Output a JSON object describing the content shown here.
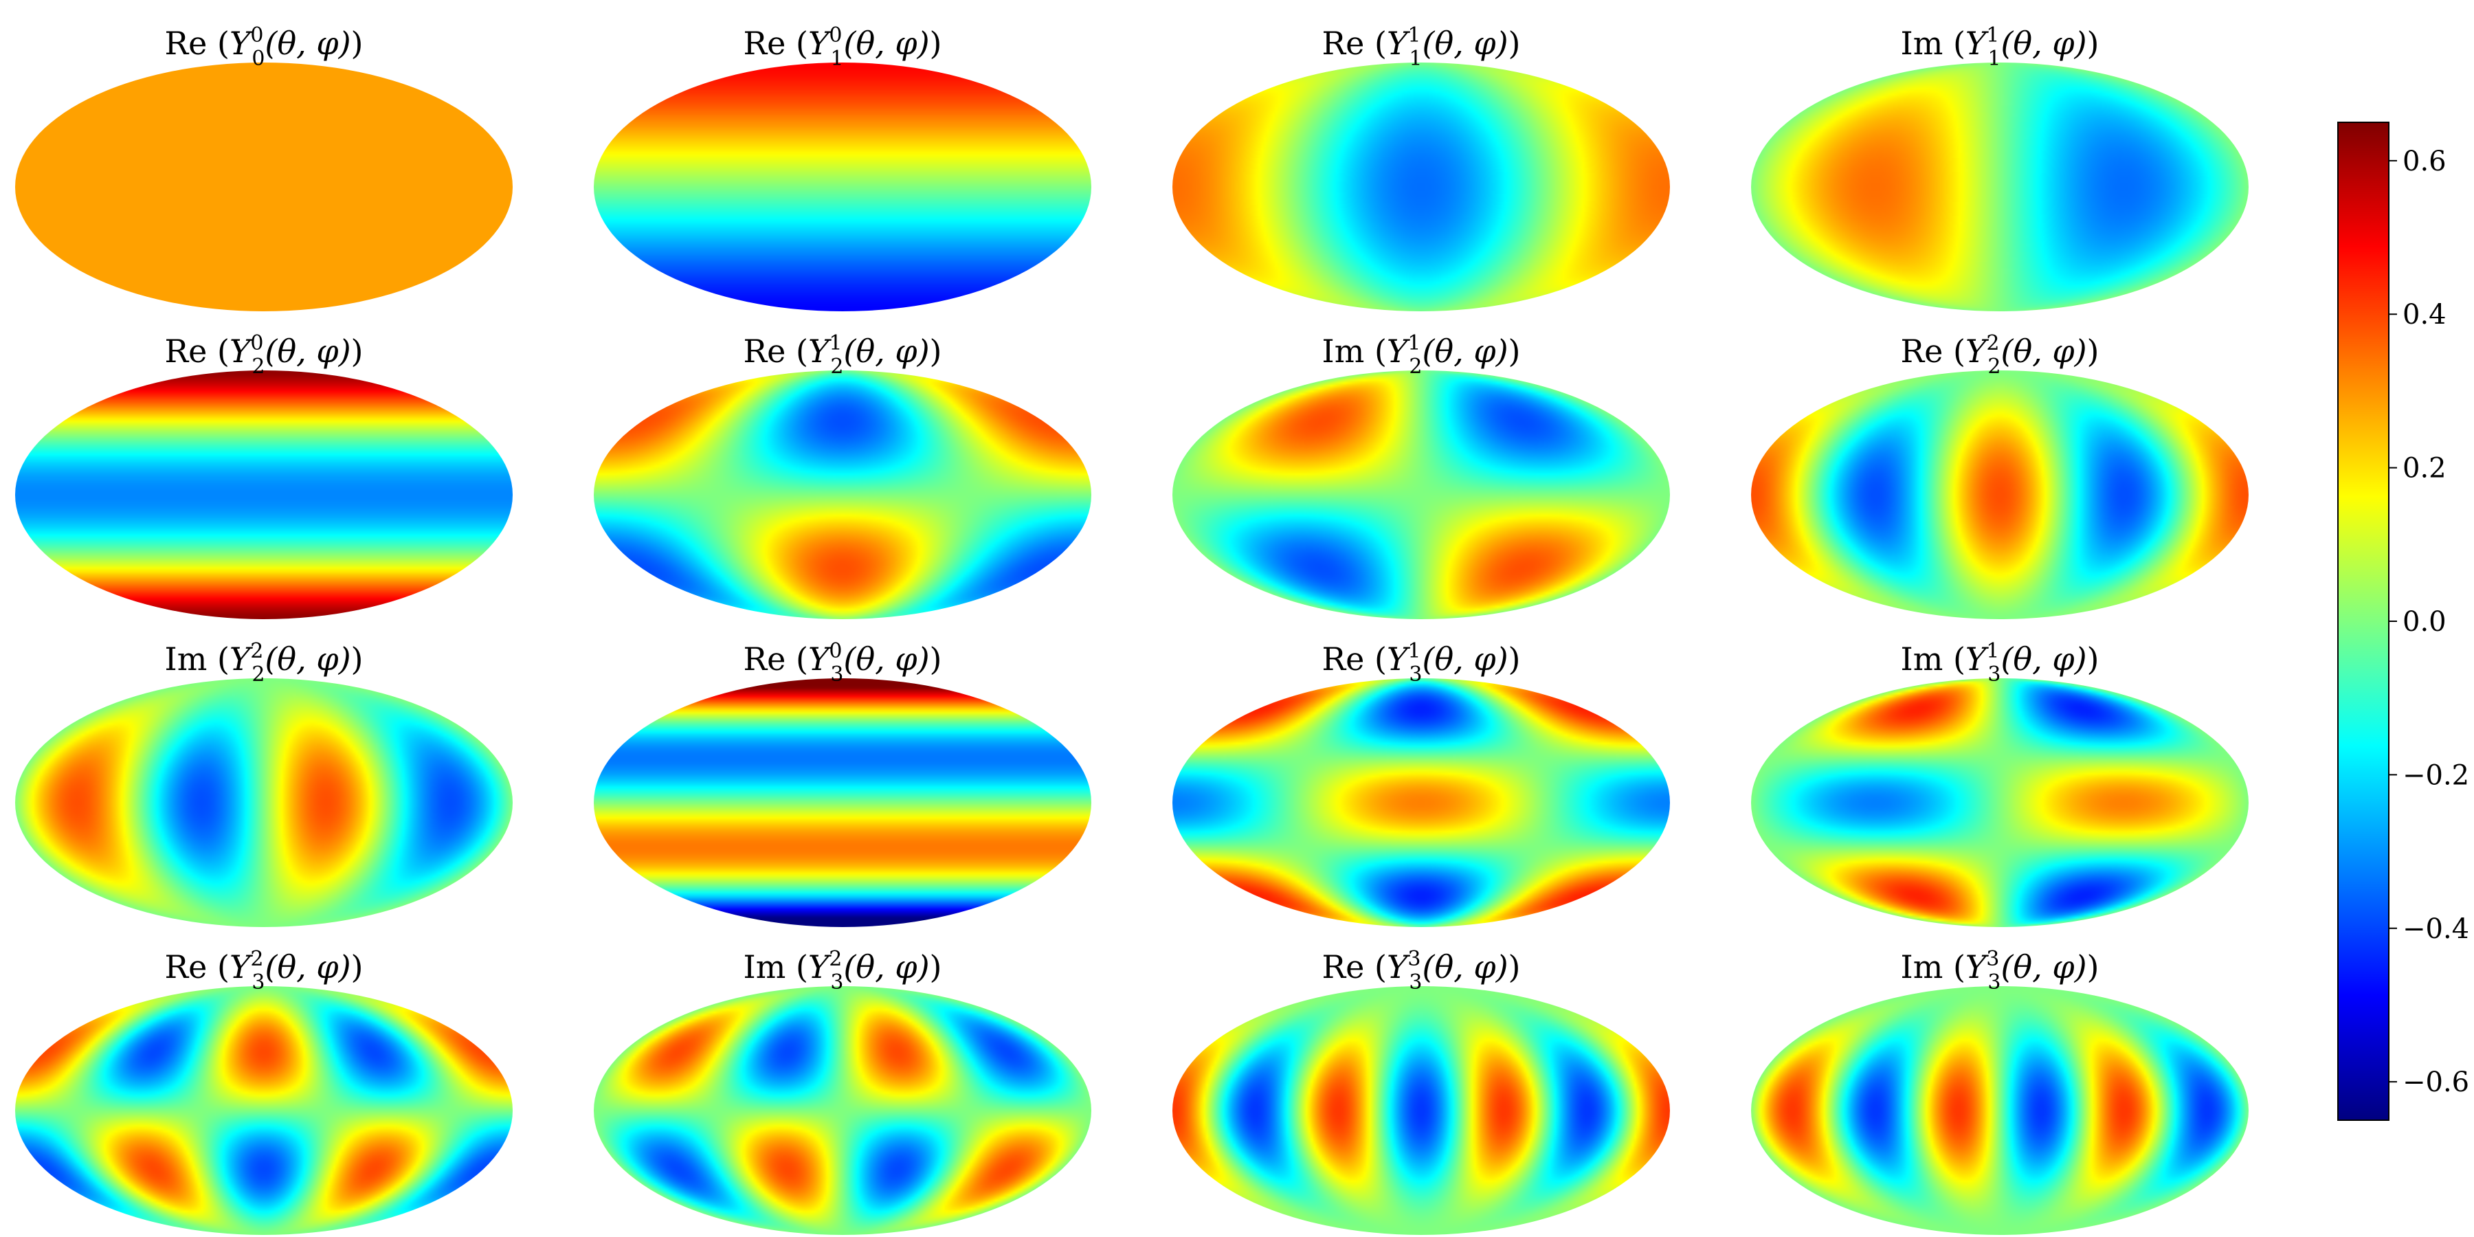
{
  "chart_data": {
    "type": "heatmap",
    "title": "",
    "projection": "mollweide",
    "colormap": "jet",
    "grid": false,
    "legend": "colorbar-right",
    "value_range": [
      -0.65,
      0.65
    ],
    "colorbar": {
      "ticks": [
        0.6,
        0.4,
        0.2,
        0.0,
        -0.2,
        -0.4,
        -0.6
      ],
      "tick_labels": [
        "0.6",
        "0.4",
        "0.2",
        "0.0",
        "−0.2",
        "−0.4",
        "−0.6"
      ]
    },
    "panels": [
      {
        "part": "Re",
        "l": 0,
        "m": 0,
        "fn": "Y",
        "sub": "0",
        "sup": "0",
        "args": "(θ, φ)"
      },
      {
        "part": "Re",
        "l": 1,
        "m": 0,
        "fn": "Y",
        "sub": "1",
        "sup": "0",
        "args": "(θ, φ)"
      },
      {
        "part": "Re",
        "l": 1,
        "m": 1,
        "fn": "Y",
        "sub": "1",
        "sup": "1",
        "args": "(θ, φ)"
      },
      {
        "part": "Im",
        "l": 1,
        "m": 1,
        "fn": "Y",
        "sub": "1",
        "sup": "1",
        "args": "(θ, φ)"
      },
      {
        "part": "Re",
        "l": 2,
        "m": 0,
        "fn": "Y",
        "sub": "2",
        "sup": "0",
        "args": "(θ, φ)"
      },
      {
        "part": "Re",
        "l": 2,
        "m": 1,
        "fn": "Y",
        "sub": "2",
        "sup": "1",
        "args": "(θ, φ)"
      },
      {
        "part": "Im",
        "l": 2,
        "m": 1,
        "fn": "Y",
        "sub": "2",
        "sup": "1",
        "args": "(θ, φ)"
      },
      {
        "part": "Re",
        "l": 2,
        "m": 2,
        "fn": "Y",
        "sub": "2",
        "sup": "2",
        "args": "(θ, φ)"
      },
      {
        "part": "Im",
        "l": 2,
        "m": 2,
        "fn": "Y",
        "sub": "2",
        "sup": "2",
        "args": "(θ, φ)"
      },
      {
        "part": "Re",
        "l": 3,
        "m": 0,
        "fn": "Y",
        "sub": "3",
        "sup": "0",
        "args": "(θ, φ)"
      },
      {
        "part": "Re",
        "l": 3,
        "m": 1,
        "fn": "Y",
        "sub": "3",
        "sup": "1",
        "args": "(θ, φ)"
      },
      {
        "part": "Im",
        "l": 3,
        "m": 1,
        "fn": "Y",
        "sub": "3",
        "sup": "1",
        "args": "(θ, φ)"
      },
      {
        "part": "Re",
        "l": 3,
        "m": 2,
        "fn": "Y",
        "sub": "3",
        "sup": "2",
        "args": "(θ, φ)"
      },
      {
        "part": "Im",
        "l": 3,
        "m": 2,
        "fn": "Y",
        "sub": "3",
        "sup": "2",
        "args": "(θ, φ)"
      },
      {
        "part": "Re",
        "l": 3,
        "m": 3,
        "fn": "Y",
        "sub": "3",
        "sup": "3",
        "args": "(θ, φ)"
      },
      {
        "part": "Im",
        "l": 3,
        "m": 3,
        "fn": "Y",
        "sub": "3",
        "sup": "3",
        "args": "(θ, φ)"
      }
    ]
  }
}
